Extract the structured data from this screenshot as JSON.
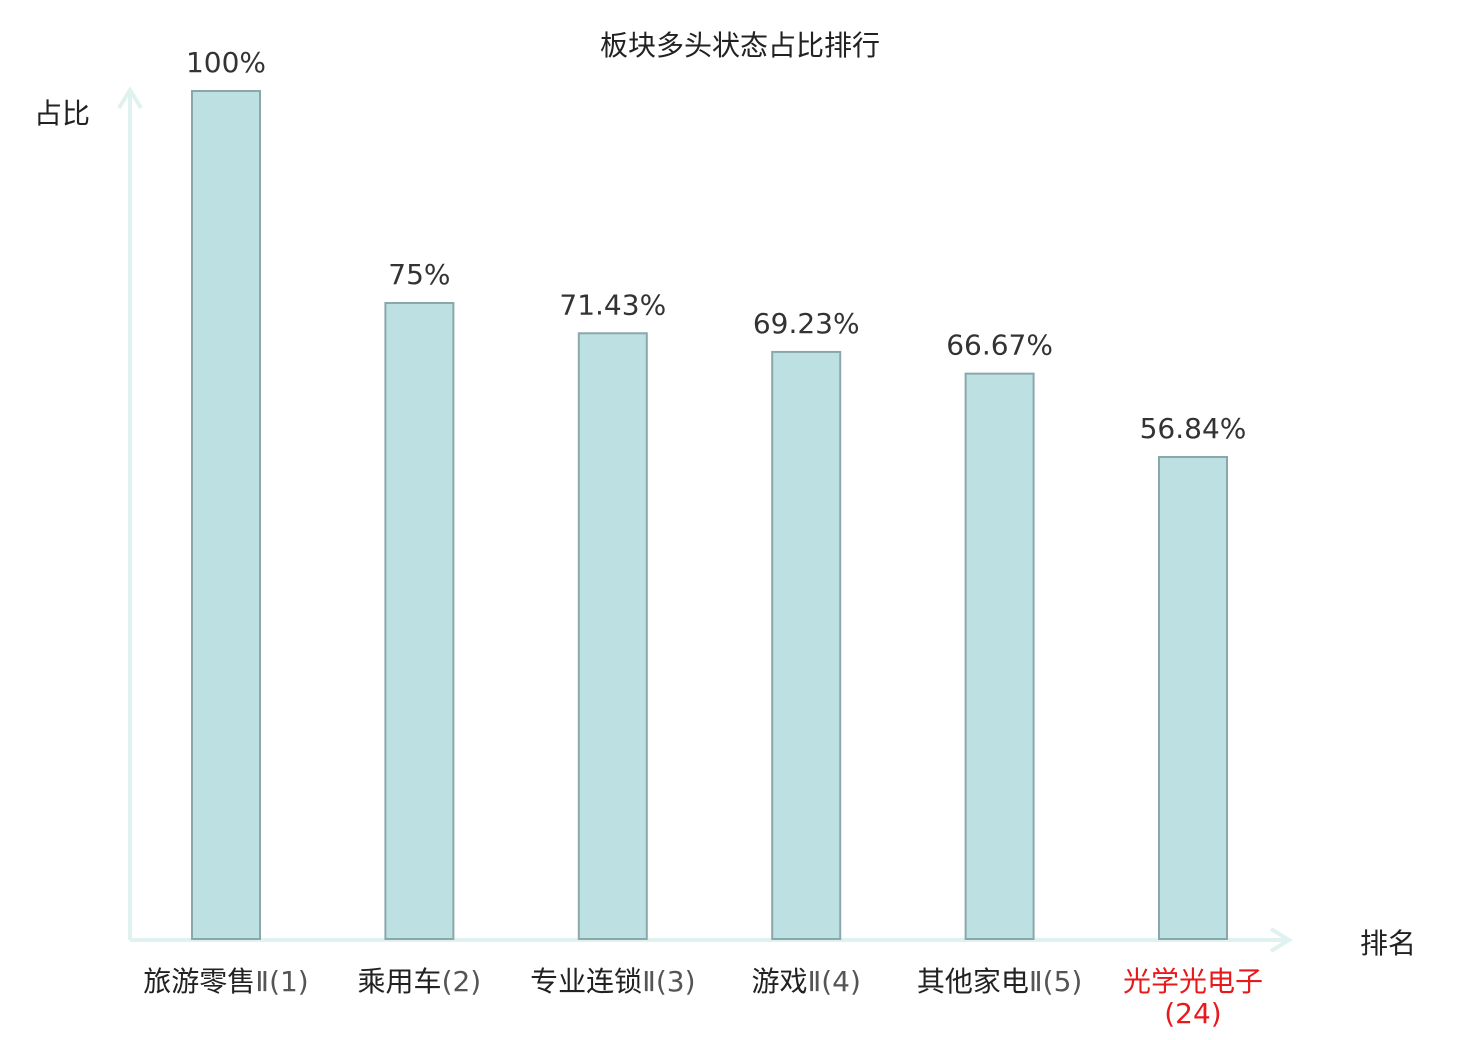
{
  "chart_data": {
    "type": "bar",
    "title": "板块多头状态占比排行",
    "ylabel": "占比",
    "xlabel": "排名",
    "ylim": [
      0,
      100
    ],
    "grid": false,
    "categories": [
      {
        "name": "旅游零售",
        "rank": "Ⅱ(1)",
        "highlight": false
      },
      {
        "name": "乘用车",
        "rank": "(2)",
        "highlight": false
      },
      {
        "name": "专业连锁",
        "rank": "Ⅱ(3)",
        "highlight": false
      },
      {
        "name": "游戏",
        "rank": "Ⅱ(4)",
        "highlight": false
      },
      {
        "name": "其他家电",
        "rank": "Ⅱ(5)",
        "highlight": false
      },
      {
        "name": "光学光电",
        "rank": "子(24)",
        "highlight": true
      }
    ],
    "values": [
      100,
      75,
      71.43,
      69.23,
      66.67,
      56.84
    ],
    "value_labels": [
      "100%",
      "75%",
      "71.43%",
      "69.23%",
      "66.67%",
      "56.84%"
    ],
    "colors": {
      "bar_fill": "#bde0e3",
      "bar_stroke": "#8aa8aa",
      "axis": "#e0f2ef",
      "highlight": "#e8191c"
    }
  }
}
